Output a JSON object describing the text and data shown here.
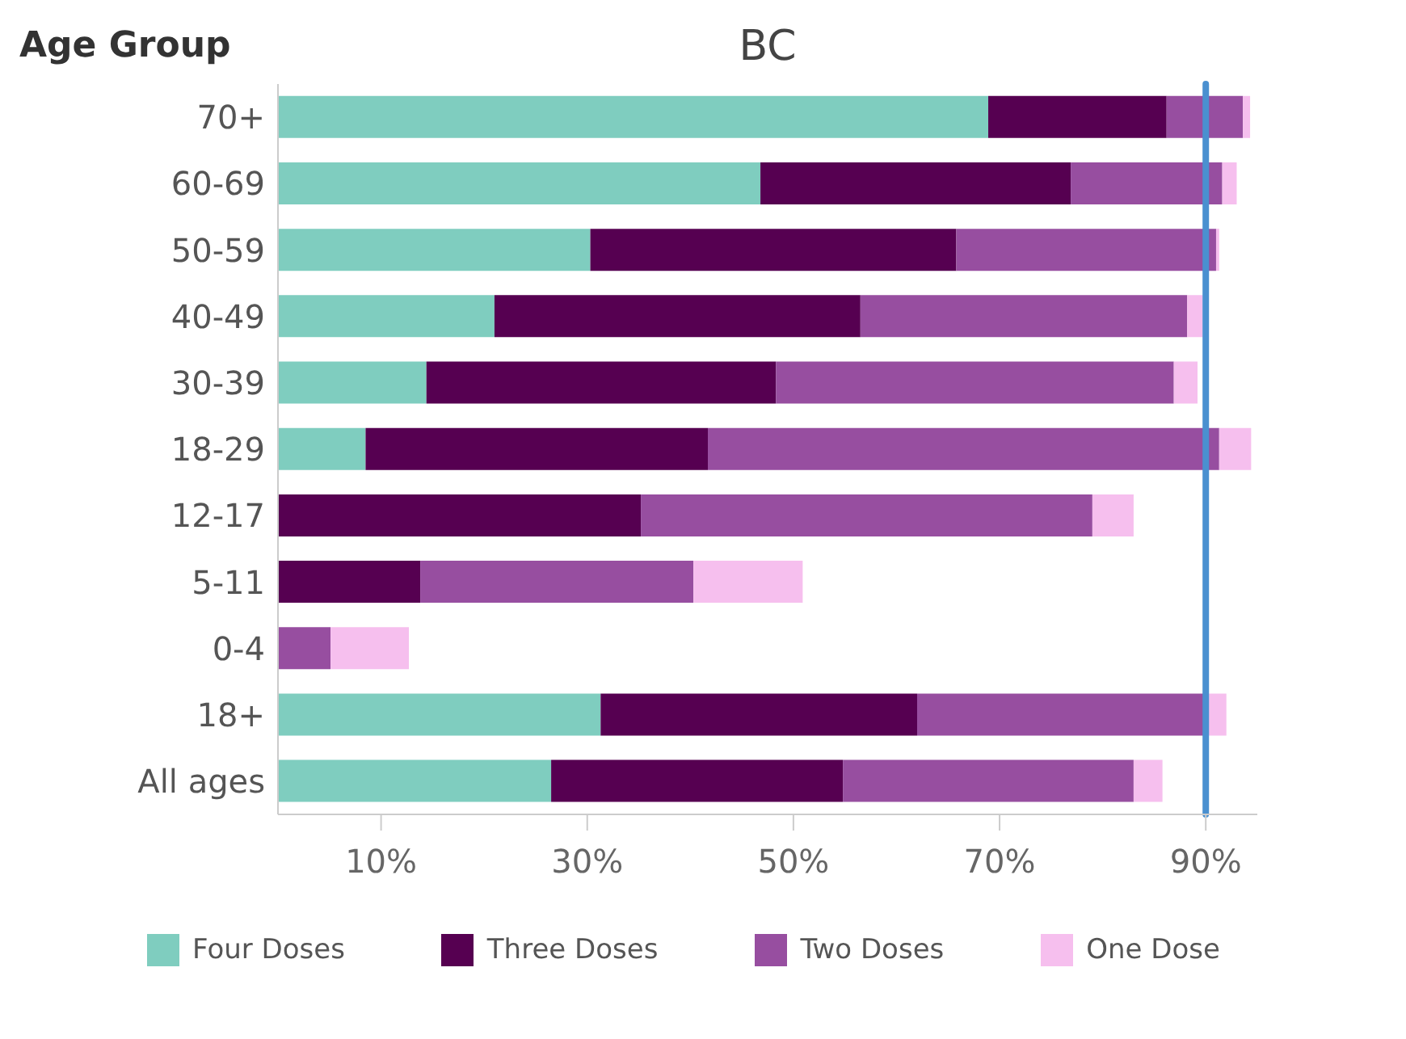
{
  "chart_data": {
    "type": "bar",
    "title": "BC",
    "ylabel": "Age Group",
    "orientation": "horizontal",
    "stacked": true,
    "categories": [
      "70+",
      "60-69",
      "50-59",
      "40-49",
      "30-39",
      "18-29",
      "12-17",
      "5-11",
      "0-4",
      "18+",
      "All ages"
    ],
    "series": [
      {
        "name": "Four Doses",
        "color": "#7fcdbf",
        "values": [
          68.9,
          46.8,
          30.3,
          21.0,
          14.4,
          8.5,
          0,
          0,
          0,
          31.3,
          26.5
        ]
      },
      {
        "name": "Three Doses",
        "color": "#560051",
        "values": [
          17.3,
          30.1,
          35.5,
          35.5,
          33.9,
          33.2,
          35.2,
          13.8,
          0,
          30.7,
          28.3
        ]
      },
      {
        "name": "Two Doses",
        "color": "#974ea0",
        "values": [
          7.4,
          14.7,
          25.2,
          31.7,
          38.6,
          49.6,
          43.8,
          26.5,
          5.1,
          28.2,
          28.2
        ]
      },
      {
        "name": "One Dose",
        "color": "#f6bfee",
        "values": [
          0.7,
          1.4,
          0.3,
          1.5,
          2.3,
          3.1,
          4.0,
          10.6,
          7.6,
          1.8,
          2.8
        ]
      }
    ],
    "xlim": [
      0,
      95
    ],
    "xticks": [
      {
        "value": 10,
        "label": "10%"
      },
      {
        "value": 30,
        "label": "30%"
      },
      {
        "value": 50,
        "label": "50%"
      },
      {
        "value": 70,
        "label": "70%"
      },
      {
        "value": 90,
        "label": "90%"
      }
    ],
    "ref_lines": [
      {
        "axis": "x",
        "value": 90,
        "label": null,
        "color": "#4a90d0"
      }
    ],
    "grid": false,
    "legend": "bottom"
  }
}
